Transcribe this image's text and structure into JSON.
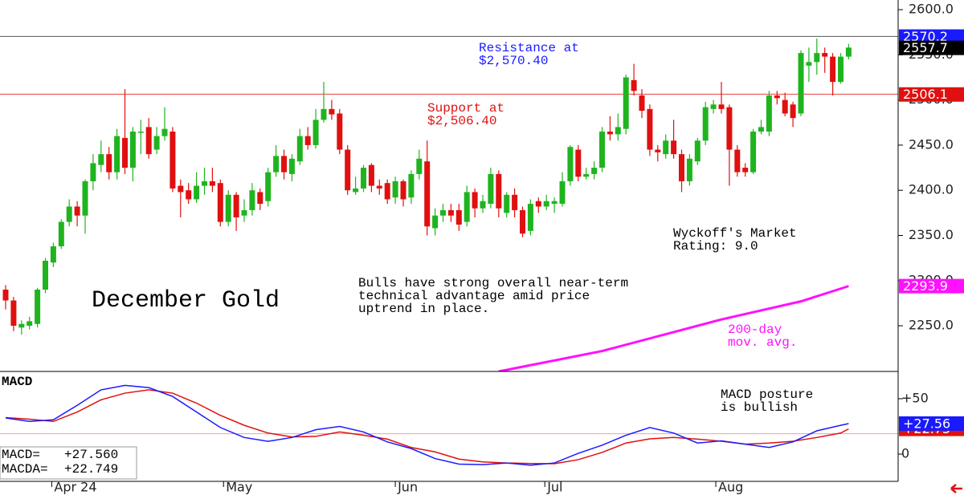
{
  "chart_data": [
    {
      "type": "candlestick",
      "title": "December Gold",
      "open": [
        2290,
        2278,
        2248,
        2250,
        2252,
        2290,
        2320,
        2338,
        2365,
        2382,
        2372,
        2410,
        2428,
        2440,
        2420,
        2458,
        2425,
        2465,
        2470,
        2445,
        2460,
        2465,
        2405,
        2400,
        2390,
        2405,
        2410,
        2408,
        2365,
        2395,
        2372,
        2378,
        2398,
        2388,
        2420,
        2438,
        2418,
        2432,
        2460,
        2450,
        2478,
        2490,
        2485,
        2445,
        2398,
        2402,
        2428,
        2405,
        2408,
        2392,
        2410,
        2392,
        2418,
        2432,
        2358,
        2372,
        2378,
        2378,
        2365,
        2398,
        2380,
        2385,
        2418,
        2375,
        2395,
        2378,
        2355,
        2388,
        2382,
        2385,
        2385,
        2410,
        2445,
        2415,
        2418,
        2425,
        2465,
        2462,
        2468,
        2522,
        2505,
        2490,
        2445,
        2440,
        2455,
        2440,
        2410,
        2432,
        2455,
        2490,
        2495,
        2492,
        2445,
        2425,
        2420,
        2465,
        2465,
        2505,
        2500,
        2495,
        2485,
        2538,
        2542,
        2552,
        2548,
        2520,
        2548
      ],
      "high": [
        2295,
        2282,
        2256,
        2260,
        2292,
        2325,
        2342,
        2368,
        2390,
        2388,
        2412,
        2440,
        2455,
        2448,
        2468,
        2512,
        2470,
        2478,
        2480,
        2470,
        2492,
        2470,
        2412,
        2408,
        2420,
        2425,
        2425,
        2412,
        2400,
        2398,
        2390,
        2408,
        2402,
        2425,
        2450,
        2445,
        2440,
        2468,
        2470,
        2490,
        2520,
        2500,
        2490,
        2450,
        2415,
        2428,
        2430,
        2412,
        2412,
        2415,
        2412,
        2422,
        2445,
        2455,
        2380,
        2385,
        2385,
        2385,
        2405,
        2402,
        2395,
        2425,
        2422,
        2398,
        2402,
        2382,
        2390,
        2392,
        2395,
        2392,
        2420,
        2450,
        2450,
        2425,
        2432,
        2470,
        2482,
        2485,
        2528,
        2540,
        2512,
        2495,
        2450,
        2462,
        2478,
        2445,
        2440,
        2458,
        2498,
        2500,
        2520,
        2495,
        2450,
        2430,
        2468,
        2478,
        2510,
        2510,
        2508,
        2498,
        2555,
        2558,
        2568,
        2558,
        2552,
        2552,
        2562
      ],
      "low": [
        2268,
        2244,
        2240,
        2246,
        2248,
        2286,
        2315,
        2335,
        2360,
        2360,
        2352,
        2400,
        2420,
        2412,
        2412,
        2418,
        2410,
        2440,
        2435,
        2440,
        2455,
        2398,
        2370,
        2385,
        2386,
        2395,
        2398,
        2360,
        2360,
        2355,
        2365,
        2372,
        2378,
        2382,
        2415,
        2412,
        2410,
        2428,
        2445,
        2446,
        2475,
        2478,
        2440,
        2395,
        2395,
        2398,
        2398,
        2395,
        2385,
        2385,
        2382,
        2385,
        2412,
        2350,
        2350,
        2365,
        2365,
        2355,
        2360,
        2370,
        2375,
        2380,
        2370,
        2370,
        2370,
        2348,
        2350,
        2375,
        2378,
        2375,
        2382,
        2405,
        2410,
        2412,
        2412,
        2420,
        2455,
        2455,
        2462,
        2505,
        2480,
        2438,
        2432,
        2435,
        2435,
        2398,
        2405,
        2428,
        2450,
        2485,
        2485,
        2405,
        2415,
        2415,
        2418,
        2462,
        2460,
        2495,
        2482,
        2470,
        2482,
        2520,
        2528,
        2530,
        2505,
        2518,
        2545
      ],
      "close": [
        2278,
        2250,
        2252,
        2255,
        2290,
        2322,
        2338,
        2365,
        2382,
        2372,
        2410,
        2430,
        2440,
        2420,
        2460,
        2425,
        2465,
        2465,
        2440,
        2460,
        2468,
        2402,
        2398,
        2390,
        2405,
        2410,
        2405,
        2365,
        2395,
        2370,
        2378,
        2400,
        2385,
        2420,
        2438,
        2420,
        2435,
        2460,
        2450,
        2478,
        2490,
        2484,
        2445,
        2400,
        2402,
        2425,
        2405,
        2402,
        2390,
        2410,
        2390,
        2418,
        2435,
        2360,
        2372,
        2378,
        2372,
        2362,
        2398,
        2380,
        2388,
        2418,
        2380,
        2395,
        2378,
        2352,
        2385,
        2382,
        2388,
        2388,
        2410,
        2448,
        2415,
        2418,
        2425,
        2465,
        2462,
        2470,
        2525,
        2510,
        2488,
        2445,
        2442,
        2455,
        2440,
        2410,
        2435,
        2455,
        2492,
        2495,
        2490,
        2445,
        2420,
        2420,
        2465,
        2470,
        2505,
        2502,
        2485,
        2480,
        2552,
        2542,
        2552,
        2548,
        2520,
        2548,
        2558
      ],
      "color_up": "#1fb41f",
      "color_down": "#e01010",
      "xticks": [
        {
          "value": 6,
          "label": "Apr 24"
        },
        {
          "value": 27.6,
          "label": "May"
        },
        {
          "value": 49.2,
          "label": "Jun"
        },
        {
          "value": 68,
          "label": "Jul"
        },
        {
          "value": 89.5,
          "label": "Aug"
        }
      ],
      "ylim": [
        2199.4,
        2610.7
      ],
      "yticks": [
        {
          "value": 2250,
          "label": "2250.0"
        },
        {
          "value": 2300,
          "label": "2300.0"
        },
        {
          "value": 2350,
          "label": "2350.0"
        },
        {
          "value": 2400,
          "label": "2400.0"
        },
        {
          "value": 2450,
          "label": "2450.0"
        },
        {
          "value": 2500,
          "label": "2500.0"
        },
        {
          "value": 2550,
          "label": "2550.0"
        },
        {
          "value": 2600,
          "label": "2600.0"
        }
      ],
      "resistance": {
        "value": 2570.4,
        "color": "#555555"
      },
      "support": {
        "value": 2506.4,
        "color": "#e84040"
      },
      "moving_average": {
        "x": [
          62,
          75,
          90,
          100,
          106
        ],
        "values": [
          2199.4,
          2222,
          2257,
          2277,
          2293.9
        ],
        "color": "#ff10ff"
      },
      "price_tags": [
        {
          "value": 2570.2,
          "color": "#1a1aff"
        },
        {
          "value": 2557.7,
          "color": "#000000"
        },
        {
          "value": 2506.1,
          "color": "#e01010"
        },
        {
          "value": 2293.9,
          "color": "#ff10ff"
        }
      ],
      "annotations": {
        "resistance": [
          "Resistance at",
          "$2,570.40"
        ],
        "support": [
          "Support at",
          "$2,506.40"
        ],
        "comment": [
          "Bulls have strong overall near-term",
          "technical advantage amid price",
          "uptrend in place."
        ],
        "rating": [
          "Wyckoff's Market",
          "Rating: 9.0"
        ],
        "ma": [
          "200-day",
          "mov. avg."
        ]
      }
    },
    {
      "type": "line",
      "title": "MACD",
      "x": [
        0,
        3,
        6,
        9,
        12,
        15,
        18,
        21,
        24,
        27,
        30,
        33,
        36,
        39,
        42,
        45,
        48,
        51,
        54,
        57,
        60,
        63,
        66,
        69,
        72,
        75,
        78,
        81,
        84,
        87,
        90,
        93,
        96,
        99,
        102,
        105,
        106
      ],
      "series": [
        {
          "label": "MACD=",
          "readout": "+27.560",
          "color": "#1a1aff",
          "values": [
            32.6,
            29.5,
            31,
            44,
            58,
            62,
            60,
            52,
            38,
            24,
            15,
            11.5,
            15,
            22,
            25,
            20,
            11,
            5,
            -4,
            -9,
            -9.5,
            -8,
            -10,
            -8,
            0.7,
            8,
            17,
            24,
            19,
            10,
            12,
            9,
            6,
            11,
            21,
            26,
            27.56
          ]
        },
        {
          "label": "MACDA=",
          "readout": "+22.749",
          "color": "#e01010",
          "values": [
            33,
            31.5,
            29.5,
            38,
            49,
            55,
            58,
            55,
            46,
            35,
            26,
            19,
            15.5,
            16,
            20,
            17,
            13.5,
            6,
            2,
            -4.5,
            -7,
            -8,
            -8.5,
            -8.7,
            -5,
            1.5,
            10,
            13.8,
            15,
            13.5,
            11.6,
            9,
            10,
            11.6,
            15,
            19,
            22.749
          ]
        }
      ],
      "ylim": [
        -24.6,
        74.6
      ],
      "yticks": [
        {
          "value": 50,
          "label": "+50"
        },
        0
      ],
      "tags": [
        {
          "value": 22.75,
          "label": "+22.75",
          "color": "#e01010"
        },
        {
          "value": 27.56,
          "label": "+27.56",
          "color": "#1a1aff"
        }
      ],
      "annotation": [
        "MACD posture",
        "is bullish"
      ]
    }
  ]
}
